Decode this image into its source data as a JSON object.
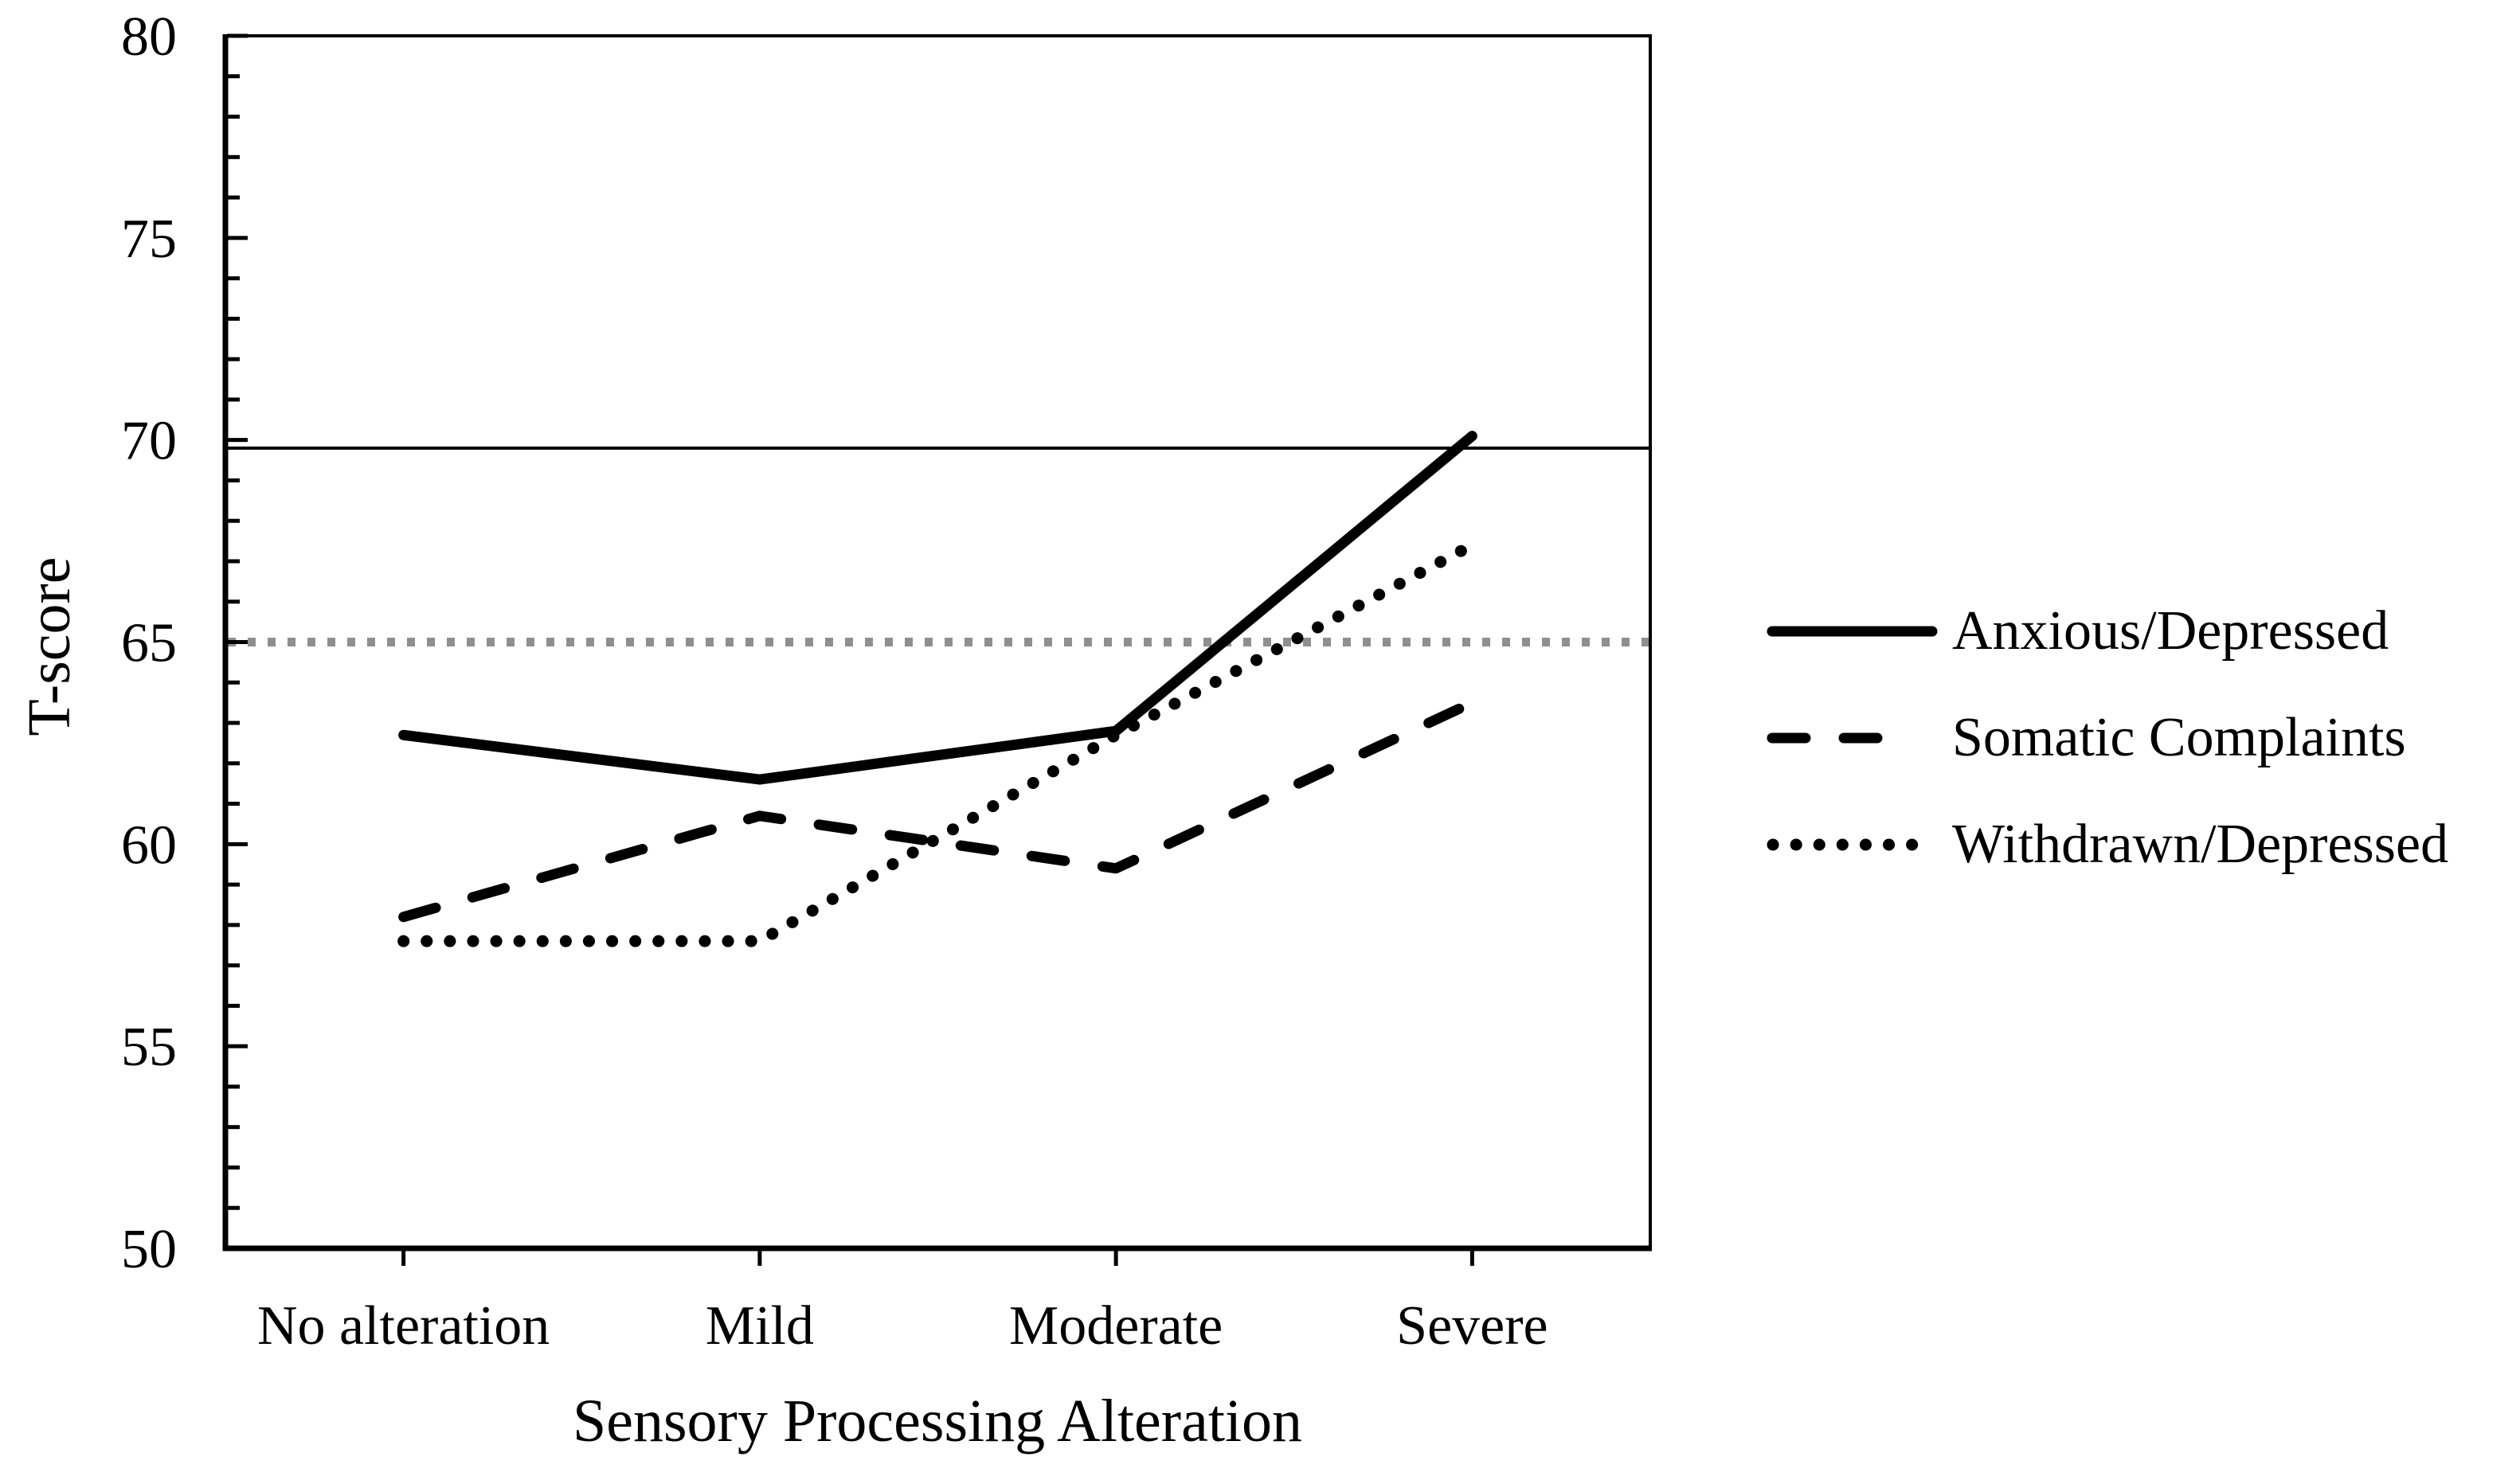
{
  "figure": {
    "y_axis_title": "T-score",
    "x_axis_title": "Sensory Processing Alteration"
  },
  "chart_data": {
    "type": "line",
    "title": "",
    "xlabel": "Sensory Processing Alteration",
    "ylabel": "T-score",
    "categories": [
      "No alteration",
      "Mild",
      "Moderate",
      "Severe"
    ],
    "series": [
      {
        "name": "Anxious/Depressed",
        "style": "solid",
        "values": [
          62.7,
          61.6,
          62.8,
          70.1
        ]
      },
      {
        "name": "Somatic Complaints",
        "style": "dashed",
        "values": [
          58.2,
          60.7,
          59.4,
          63.5
        ]
      },
      {
        "name": "Withdrawn/Depressed",
        "style": "dotted",
        "values": [
          57.6,
          57.6,
          62.7,
          67.4
        ]
      }
    ],
    "ylim": [
      50,
      80
    ],
    "ytick_interval_major": 5,
    "ytick_interval_minor": 1,
    "ytick_labels": [
      "80",
      "75",
      "70",
      "65",
      "60",
      "55",
      "50"
    ],
    "reference_lines": [
      {
        "value": 69.8,
        "style": "thin-solid",
        "color": "#000000"
      },
      {
        "value": 65.0,
        "style": "dotted",
        "color": "#8f8f8f"
      }
    ],
    "grid": false,
    "legend_position": "right-middle",
    "colors": {
      "series": "#000000",
      "background": "#ffffff",
      "borderline_reference": "#8f8f8f"
    }
  }
}
